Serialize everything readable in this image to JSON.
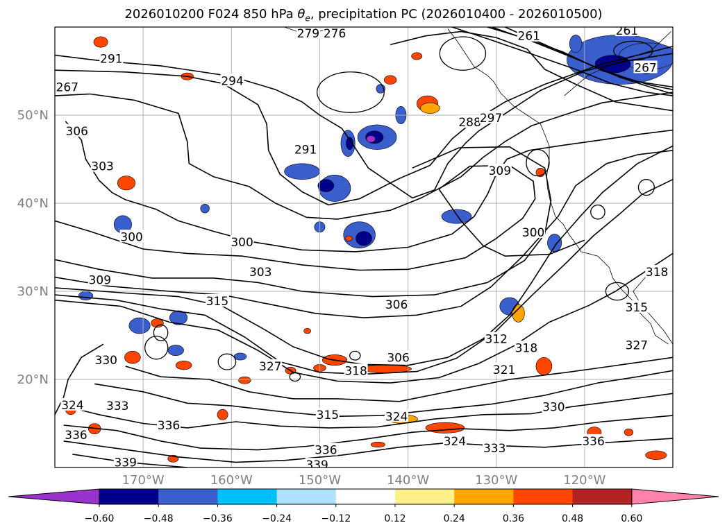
{
  "title_main": "2026010200 F024 850 hPa ",
  "title_symbol": "θ",
  "title_sub": "e",
  "title_rest": ", precipitation PC (2026010400 - 2026010500)",
  "chart_data": {
    "type": "contour",
    "projection": "map",
    "lon_range": [
      -180,
      -110
    ],
    "lat_range": [
      10,
      60
    ],
    "x_ticks": [
      {
        "lon": -170,
        "label": "170°W"
      },
      {
        "lon": -160,
        "label": "160°W"
      },
      {
        "lon": -150,
        "label": "150°W"
      },
      {
        "lon": -140,
        "label": "140°W"
      },
      {
        "lon": -130,
        "label": "130°W"
      },
      {
        "lon": -120,
        "label": "120°W"
      }
    ],
    "y_ticks": [
      {
        "lat": 50,
        "label": "50°N"
      },
      {
        "lat": 40,
        "label": "40°N"
      },
      {
        "lat": 30,
        "label": "30°N"
      },
      {
        "lat": 20,
        "label": "20°N"
      }
    ],
    "grid": true,
    "contour_labels": [
      {
        "text": "291",
        "lon": -173.6,
        "lat": 56.4
      },
      {
        "text": "294",
        "lon": -159.9,
        "lat": 53.9
      },
      {
        "text": "276",
        "lon": -148.3,
        "lat": 59.3
      },
      {
        "text": "279",
        "lon": -151.3,
        "lat": 59.3
      },
      {
        "text": "261",
        "lon": -126.3,
        "lat": 59.0
      },
      {
        "text": "261",
        "lon": -115.2,
        "lat": 59.6
      },
      {
        "text": "267",
        "lon": -113.1,
        "lat": 55.4
      },
      {
        "text": "267",
        "lon": -178.6,
        "lat": 53.2
      },
      {
        "text": "306",
        "lon": -177.5,
        "lat": 48.2
      },
      {
        "text": "303",
        "lon": -174.6,
        "lat": 44.2
      },
      {
        "text": "291",
        "lon": -151.6,
        "lat": 46.1
      },
      {
        "text": "288",
        "lon": -133.0,
        "lat": 49.2
      },
      {
        "text": "297",
        "lon": -130.6,
        "lat": 49.7
      },
      {
        "text": "309",
        "lon": -129.6,
        "lat": 43.7
      },
      {
        "text": "300",
        "lon": -171.3,
        "lat": 36.2
      },
      {
        "text": "300",
        "lon": -158.8,
        "lat": 35.6
      },
      {
        "text": "303",
        "lon": -156.7,
        "lat": 32.2
      },
      {
        "text": "300",
        "lon": -125.8,
        "lat": 36.7
      },
      {
        "text": "309",
        "lon": -174.9,
        "lat": 31.3
      },
      {
        "text": "315",
        "lon": -161.6,
        "lat": 28.9
      },
      {
        "text": "306",
        "lon": -141.3,
        "lat": 28.5
      },
      {
        "text": "315",
        "lon": -114.1,
        "lat": 28.2
      },
      {
        "text": "318",
        "lon": -111.8,
        "lat": 32.2
      },
      {
        "text": "312",
        "lon": -130.0,
        "lat": 24.6
      },
      {
        "text": "318",
        "lon": -126.6,
        "lat": 23.6
      },
      {
        "text": "306",
        "lon": -141.1,
        "lat": 22.5
      },
      {
        "text": "318",
        "lon": -145.9,
        "lat": 21.0
      },
      {
        "text": "327",
        "lon": -114.1,
        "lat": 23.9
      },
      {
        "text": "321",
        "lon": -129.1,
        "lat": 21.1
      },
      {
        "text": "330",
        "lon": -174.2,
        "lat": 22.2
      },
      {
        "text": "327",
        "lon": -155.6,
        "lat": 21.5
      },
      {
        "text": "324",
        "lon": -178.0,
        "lat": 17.1
      },
      {
        "text": "333",
        "lon": -172.9,
        "lat": 17.0
      },
      {
        "text": "324",
        "lon": -141.3,
        "lat": 15.8
      },
      {
        "text": "315",
        "lon": -149.1,
        "lat": 16.0
      },
      {
        "text": "330",
        "lon": -123.5,
        "lat": 16.9
      },
      {
        "text": "336",
        "lon": -177.6,
        "lat": 13.7
      },
      {
        "text": "336",
        "lon": -167.1,
        "lat": 14.8
      },
      {
        "text": "336",
        "lon": -149.3,
        "lat": 12.0
      },
      {
        "text": "333",
        "lon": -130.2,
        "lat": 12.2
      },
      {
        "text": "336",
        "lon": -119.0,
        "lat": 13.0
      },
      {
        "text": "324",
        "lon": -134.7,
        "lat": 13.0
      },
      {
        "text": "339",
        "lon": -172.0,
        "lat": 10.6
      },
      {
        "text": "339",
        "lon": -150.3,
        "lat": 10.3
      }
    ],
    "colorbar": {
      "ticks": [
        "−0.60",
        "−0.48",
        "−0.36",
        "−0.24",
        "−0.12",
        "0.12",
        "0.24",
        "0.36",
        "0.48",
        "0.60"
      ],
      "colors": [
        "#9a32cd",
        "#00008b",
        "#3a5fcd",
        "#00bfff",
        "#b0e2ff",
        "#ffffff",
        "#fff08a",
        "#ffa500",
        "#ff4500",
        "#b22222",
        "#ff82ab"
      ],
      "extend": "both"
    }
  }
}
